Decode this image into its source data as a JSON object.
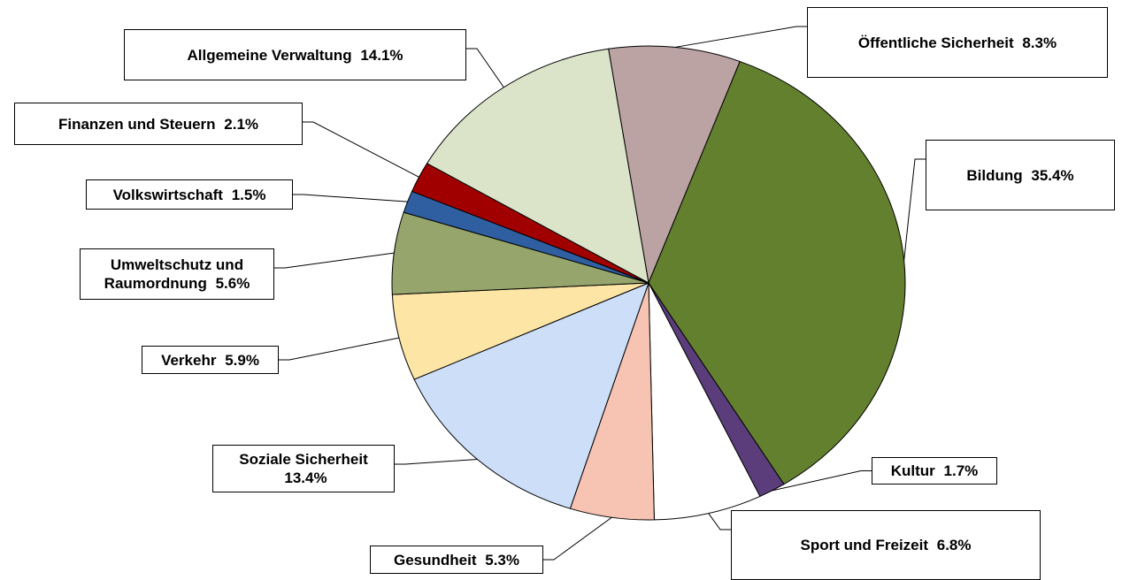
{
  "chart_data": {
    "type": "pie",
    "categories": [
      "Öffentliche Sicherheit",
      "Bildung",
      "Kultur",
      "Sport und Freizeit",
      "Gesundheit",
      "Soziale Sicherheit",
      "Verkehr",
      "Umweltschutz und Raumordnung",
      "Volkswirtschaft",
      "Finanzen und Steuern",
      "Allgemeine Verwaltung"
    ],
    "values": [
      8.3,
      35.4,
      1.7,
      6.8,
      5.3,
      13.4,
      5.9,
      5.6,
      1.5,
      2.1,
      14.1
    ],
    "value_labels": [
      "8.3%",
      "35.4%",
      "1.7%",
      "6.8%",
      "5.3%",
      "13.4%",
      "5.9%",
      "5.6%",
      "1.5%",
      "2.1%",
      "14.1%"
    ],
    "colors": [
      "#bca3a3",
      "#62802e",
      "#5a3d7a",
      "#ffffff",
      "#f7c3b3",
      "#cddff8",
      "#fde5a6",
      "#95a56c",
      "#2f5fa0",
      "#a00000",
      "#dbe4c9"
    ]
  }
}
